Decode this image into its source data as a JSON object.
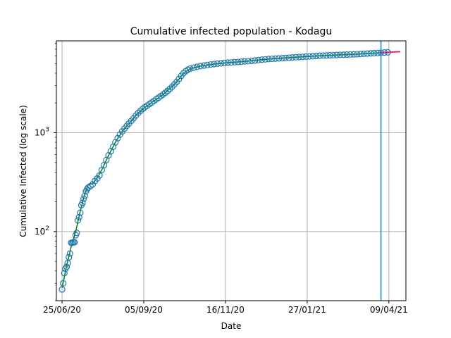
{
  "chart_data": {
    "type": "scatter",
    "title": "Cumulative infected population - Kodagu",
    "xlabel": "Date",
    "ylabel": "Cumulative Infected (log scale)",
    "yscale": "log",
    "ylim": [
      20,
      8500
    ],
    "xlim": [
      "2020-06-20",
      "2021-04-24"
    ],
    "x_ticks": [
      {
        "date": "2020-06-25",
        "label": "25/06/20"
      },
      {
        "date": "2020-09-05",
        "label": "05/09/20"
      },
      {
        "date": "2020-11-16",
        "label": "16/11/20"
      },
      {
        "date": "2021-01-27",
        "label": "27/01/21"
      },
      {
        "date": "2021-04-09",
        "label": "09/04/21"
      }
    ],
    "y_ticks": [
      {
        "value": 100,
        "base": "10",
        "exp": "2"
      },
      {
        "value": 1000,
        "base": "10",
        "exp": "3"
      }
    ],
    "grid": true,
    "vertical_line_date": "2021-04-02",
    "colors": {
      "observed": "#1f77b4",
      "fit": "#008000",
      "projection": "#e0207f",
      "vline": "#1f8fe0",
      "grid": "#b0b0b0"
    },
    "series": [
      {
        "role": "observed",
        "marker": "open-circle",
        "points": [
          [
            "2020-06-25",
            26
          ],
          [
            "2020-06-26",
            30
          ],
          [
            "2020-06-27",
            38
          ],
          [
            "2020-06-28",
            42
          ],
          [
            "2020-06-29",
            44
          ],
          [
            "2020-06-30",
            48
          ],
          [
            "2020-07-01",
            55
          ],
          [
            "2020-07-02",
            60
          ],
          [
            "2020-07-03",
            77
          ],
          [
            "2020-07-04",
            77
          ],
          [
            "2020-07-05",
            78
          ],
          [
            "2020-07-06",
            78
          ],
          [
            "2020-07-07",
            92
          ],
          [
            "2020-07-08",
            97
          ],
          [
            "2020-07-09",
            130
          ],
          [
            "2020-07-10",
            140
          ],
          [
            "2020-07-11",
            155
          ],
          [
            "2020-07-12",
            185
          ],
          [
            "2020-07-13",
            195
          ],
          [
            "2020-07-14",
            215
          ],
          [
            "2020-07-15",
            230
          ],
          [
            "2020-07-16",
            255
          ],
          [
            "2020-07-17",
            268
          ],
          [
            "2020-07-18",
            278
          ],
          [
            "2020-07-20",
            288
          ],
          [
            "2020-07-22",
            300
          ],
          [
            "2020-07-24",
            325
          ],
          [
            "2020-07-26",
            345
          ],
          [
            "2020-07-28",
            370
          ],
          [
            "2020-07-30",
            420
          ],
          [
            "2020-08-01",
            470
          ],
          [
            "2020-08-03",
            530
          ],
          [
            "2020-08-05",
            590
          ],
          [
            "2020-08-07",
            650
          ],
          [
            "2020-08-09",
            720
          ],
          [
            "2020-08-11",
            800
          ],
          [
            "2020-08-13",
            880
          ],
          [
            "2020-08-15",
            960
          ],
          [
            "2020-08-17",
            1030
          ],
          [
            "2020-08-19",
            1100
          ],
          [
            "2020-08-21",
            1170
          ],
          [
            "2020-08-23",
            1240
          ],
          [
            "2020-08-25",
            1320
          ],
          [
            "2020-08-27",
            1400
          ],
          [
            "2020-08-29",
            1490
          ],
          [
            "2020-08-31",
            1580
          ],
          [
            "2020-09-02",
            1660
          ],
          [
            "2020-09-04",
            1740
          ],
          [
            "2020-09-06",
            1810
          ],
          [
            "2020-09-08",
            1880
          ],
          [
            "2020-09-10",
            1950
          ],
          [
            "2020-09-12",
            2020
          ],
          [
            "2020-09-14",
            2100
          ],
          [
            "2020-09-16",
            2180
          ],
          [
            "2020-09-18",
            2260
          ],
          [
            "2020-09-20",
            2350
          ],
          [
            "2020-09-22",
            2440
          ],
          [
            "2020-09-24",
            2540
          ],
          [
            "2020-09-26",
            2650
          ],
          [
            "2020-09-28",
            2780
          ],
          [
            "2020-09-30",
            2920
          ],
          [
            "2020-10-02",
            3080
          ],
          [
            "2020-10-04",
            3270
          ],
          [
            "2020-10-06",
            3500
          ],
          [
            "2020-10-08",
            3760
          ],
          [
            "2020-10-10",
            4000
          ],
          [
            "2020-10-12",
            4200
          ],
          [
            "2020-10-14",
            4350
          ],
          [
            "2020-10-16",
            4450
          ],
          [
            "2020-10-19",
            4550
          ],
          [
            "2020-10-22",
            4640
          ],
          [
            "2020-10-25",
            4720
          ],
          [
            "2020-10-28",
            4790
          ],
          [
            "2020-10-31",
            4850
          ],
          [
            "2020-11-03",
            4900
          ],
          [
            "2020-11-06",
            4950
          ],
          [
            "2020-11-09",
            5000
          ],
          [
            "2020-11-12",
            5040
          ],
          [
            "2020-11-15",
            5080
          ],
          [
            "2020-11-18",
            5110
          ],
          [
            "2020-11-21",
            5140
          ],
          [
            "2020-11-24",
            5170
          ],
          [
            "2020-11-27",
            5200
          ],
          [
            "2020-11-30",
            5230
          ],
          [
            "2020-12-03",
            5260
          ],
          [
            "2020-12-06",
            5290
          ],
          [
            "2020-12-09",
            5330
          ],
          [
            "2020-12-12",
            5380
          ],
          [
            "2020-12-15",
            5430
          ],
          [
            "2020-12-18",
            5480
          ],
          [
            "2020-12-21",
            5520
          ],
          [
            "2020-12-24",
            5560
          ],
          [
            "2020-12-27",
            5590
          ],
          [
            "2020-12-30",
            5620
          ],
          [
            "2021-01-02",
            5650
          ],
          [
            "2021-01-05",
            5680
          ],
          [
            "2021-01-08",
            5710
          ],
          [
            "2021-01-11",
            5740
          ],
          [
            "2021-01-14",
            5770
          ],
          [
            "2021-01-17",
            5800
          ],
          [
            "2021-01-20",
            5830
          ],
          [
            "2021-01-23",
            5860
          ],
          [
            "2021-01-26",
            5890
          ],
          [
            "2021-01-29",
            5920
          ],
          [
            "2021-02-01",
            5950
          ],
          [
            "2021-02-04",
            5980
          ],
          [
            "2021-02-07",
            6010
          ],
          [
            "2021-02-10",
            6030
          ],
          [
            "2021-02-13",
            6050
          ],
          [
            "2021-02-16",
            6070
          ],
          [
            "2021-02-19",
            6090
          ],
          [
            "2021-02-22",
            6110
          ],
          [
            "2021-02-25",
            6130
          ],
          [
            "2021-02-28",
            6150
          ],
          [
            "2021-03-03",
            6170
          ],
          [
            "2021-03-06",
            6190
          ],
          [
            "2021-03-09",
            6210
          ],
          [
            "2021-03-12",
            6230
          ],
          [
            "2021-03-15",
            6260
          ],
          [
            "2021-03-18",
            6290
          ],
          [
            "2021-03-21",
            6320
          ],
          [
            "2021-03-24",
            6350
          ],
          [
            "2021-03-27",
            6380
          ],
          [
            "2021-03-30",
            6410
          ],
          [
            "2021-04-02",
            6440
          ],
          [
            "2021-04-05",
            6470
          ],
          [
            "2021-04-08",
            6500
          ]
        ]
      },
      {
        "role": "fit",
        "line": "solid",
        "points": [
          [
            "2020-06-25",
            27
          ],
          [
            "2020-06-29",
            45
          ],
          [
            "2020-07-03",
            70
          ],
          [
            "2020-07-07",
            100
          ],
          [
            "2020-07-11",
            160
          ],
          [
            "2020-07-15",
            240
          ],
          [
            "2020-07-18",
            300
          ],
          [
            "2020-07-22",
            305
          ],
          [
            "2020-07-26",
            350
          ],
          [
            "2020-07-30",
            420
          ],
          [
            "2020-08-05",
            590
          ],
          [
            "2020-08-11",
            800
          ],
          [
            "2020-08-17",
            1030
          ],
          [
            "2020-08-23",
            1240
          ],
          [
            "2020-08-29",
            1490
          ],
          [
            "2020-09-04",
            1740
          ],
          [
            "2020-09-10",
            1950
          ],
          [
            "2020-09-16",
            2180
          ],
          [
            "2020-09-22",
            2440
          ],
          [
            "2020-09-28",
            2780
          ],
          [
            "2020-10-04",
            3270
          ],
          [
            "2020-10-10",
            4000
          ],
          [
            "2020-10-16",
            4450
          ],
          [
            "2020-10-25",
            4720
          ],
          [
            "2020-11-06",
            4950
          ],
          [
            "2020-11-18",
            5110
          ],
          [
            "2020-12-03",
            5260
          ],
          [
            "2020-12-18",
            5480
          ],
          [
            "2021-01-02",
            5650
          ],
          [
            "2021-01-17",
            5800
          ],
          [
            "2021-02-01",
            5950
          ],
          [
            "2021-02-16",
            6070
          ],
          [
            "2021-03-03",
            6170
          ],
          [
            "2021-03-18",
            6290
          ],
          [
            "2021-04-02",
            6440
          ],
          [
            "2021-04-08",
            6500
          ]
        ]
      },
      {
        "role": "projection",
        "line": "solid",
        "points": [
          [
            "2021-04-02",
            6440
          ],
          [
            "2021-04-08",
            6500
          ],
          [
            "2021-04-14",
            6560
          ],
          [
            "2021-04-19",
            6600
          ]
        ]
      }
    ]
  }
}
